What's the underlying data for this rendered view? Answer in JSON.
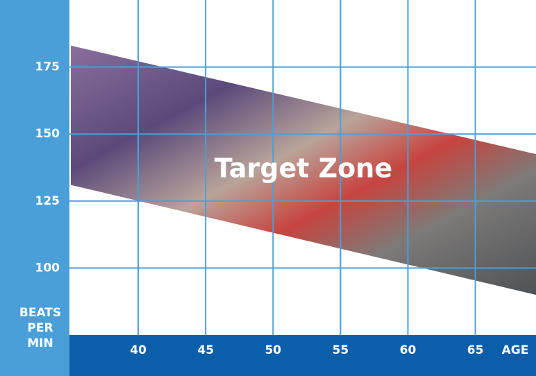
{
  "chart_data": {
    "type": "zone",
    "zone": {
      "label": "Target Zone",
      "x": [
        35,
        69.5
      ],
      "upper": [
        183,
        142.5
      ],
      "lower": [
        131,
        90
      ]
    },
    "xlabel": "AGE",
    "ylabel": [
      "BEATS",
      "PER",
      "MIN"
    ],
    "xlim": [
      35,
      69.5
    ],
    "xticks": [
      40,
      45,
      50,
      55,
      60,
      65
    ],
    "ylim": [
      75,
      200
    ],
    "yticks": [
      100,
      125,
      150,
      175
    ],
    "grid": true,
    "grid_color": "#4a9fd8"
  }
}
